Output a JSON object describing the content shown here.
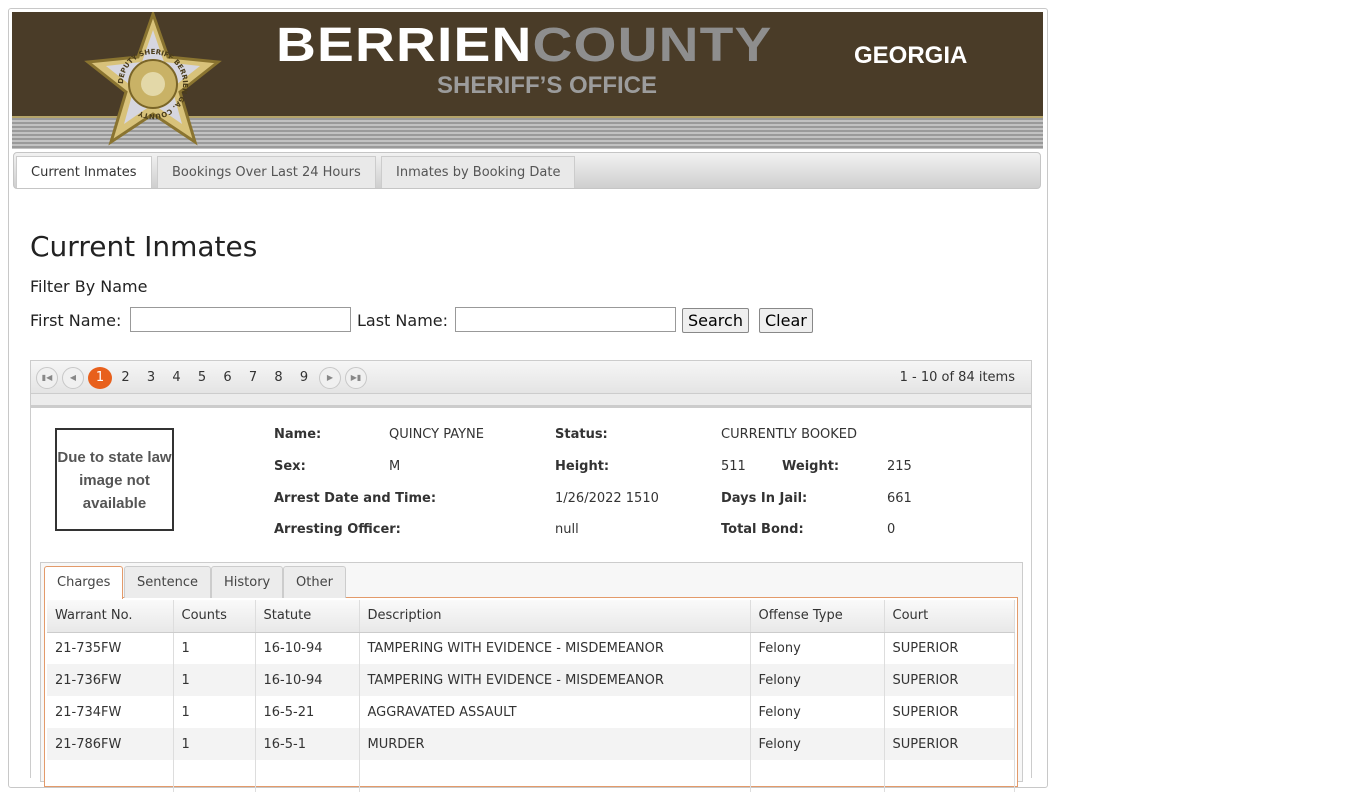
{
  "header": {
    "title_a": "BERRIEN",
    "title_b": "COUNTY",
    "state": "GEORGIA",
    "subtitle": "SHERIFF’S OFFICE",
    "badge_text": "DEPUTY SHERIFF BERRIEN GA. COUNTY"
  },
  "nav": {
    "tabs": [
      {
        "label": "Current Inmates"
      },
      {
        "label": "Bookings Over Last 24 Hours"
      },
      {
        "label": "Inmates by Booking Date"
      }
    ]
  },
  "page": {
    "title": "Current Inmates",
    "filter_label": "Filter By Name",
    "first_label": "First Name:",
    "last_label": "Last Name:",
    "first_value": "",
    "last_value": "",
    "search": "Search",
    "clear": "Clear"
  },
  "pager": {
    "pages": [
      "1",
      "2",
      "3",
      "4",
      "5",
      "6",
      "7",
      "8",
      "9"
    ],
    "current": "1",
    "info": "1 - 10 of 84 items"
  },
  "inmate": {
    "photo_text": "Due to state law image not available",
    "name_l": "Name:",
    "name": "QUINCY PAYNE",
    "status_l": "Status:",
    "status": "CURRENTLY BOOKED",
    "sex_l": "Sex:",
    "sex": "M",
    "height_l": "Height:",
    "height": "511",
    "weight_l": "Weight:",
    "weight": "215",
    "arrest_l": "Arrest Date and Time:",
    "arrest": "1/26/2022 1510",
    "days_l": "Days In Jail:",
    "days": "661",
    "officer_l": "Arresting Officer:",
    "officer": "null",
    "bond_l": "Total Bond:",
    "bond": "0"
  },
  "detail_tabs": [
    {
      "label": "Charges"
    },
    {
      "label": "Sentence"
    },
    {
      "label": "History"
    },
    {
      "label": "Other"
    }
  ],
  "charges": {
    "columns": [
      "Warrant No.",
      "Counts",
      "Statute",
      "Description",
      "Offense Type",
      "Court"
    ],
    "rows": [
      [
        "21-735FW",
        "1",
        "16-10-94",
        "TAMPERING WITH EVIDENCE - MISDEMEANOR",
        "Felony",
        "SUPERIOR"
      ],
      [
        "21-736FW",
        "1",
        "16-10-94",
        "TAMPERING WITH EVIDENCE - MISDEMEANOR",
        "Felony",
        "SUPERIOR"
      ],
      [
        "21-734FW",
        "1",
        "16-5-21",
        "AGGRAVATED ASSAULT",
        "Felony",
        "SUPERIOR"
      ],
      [
        "21-786FW",
        "1",
        "16-5-1",
        "MURDER",
        "Felony",
        "SUPERIOR"
      ],
      [
        "",
        "",
        "",
        "",
        "",
        ""
      ]
    ]
  },
  "colors": {
    "header_bg": "#4a3c28",
    "accent": "#e8601c"
  }
}
